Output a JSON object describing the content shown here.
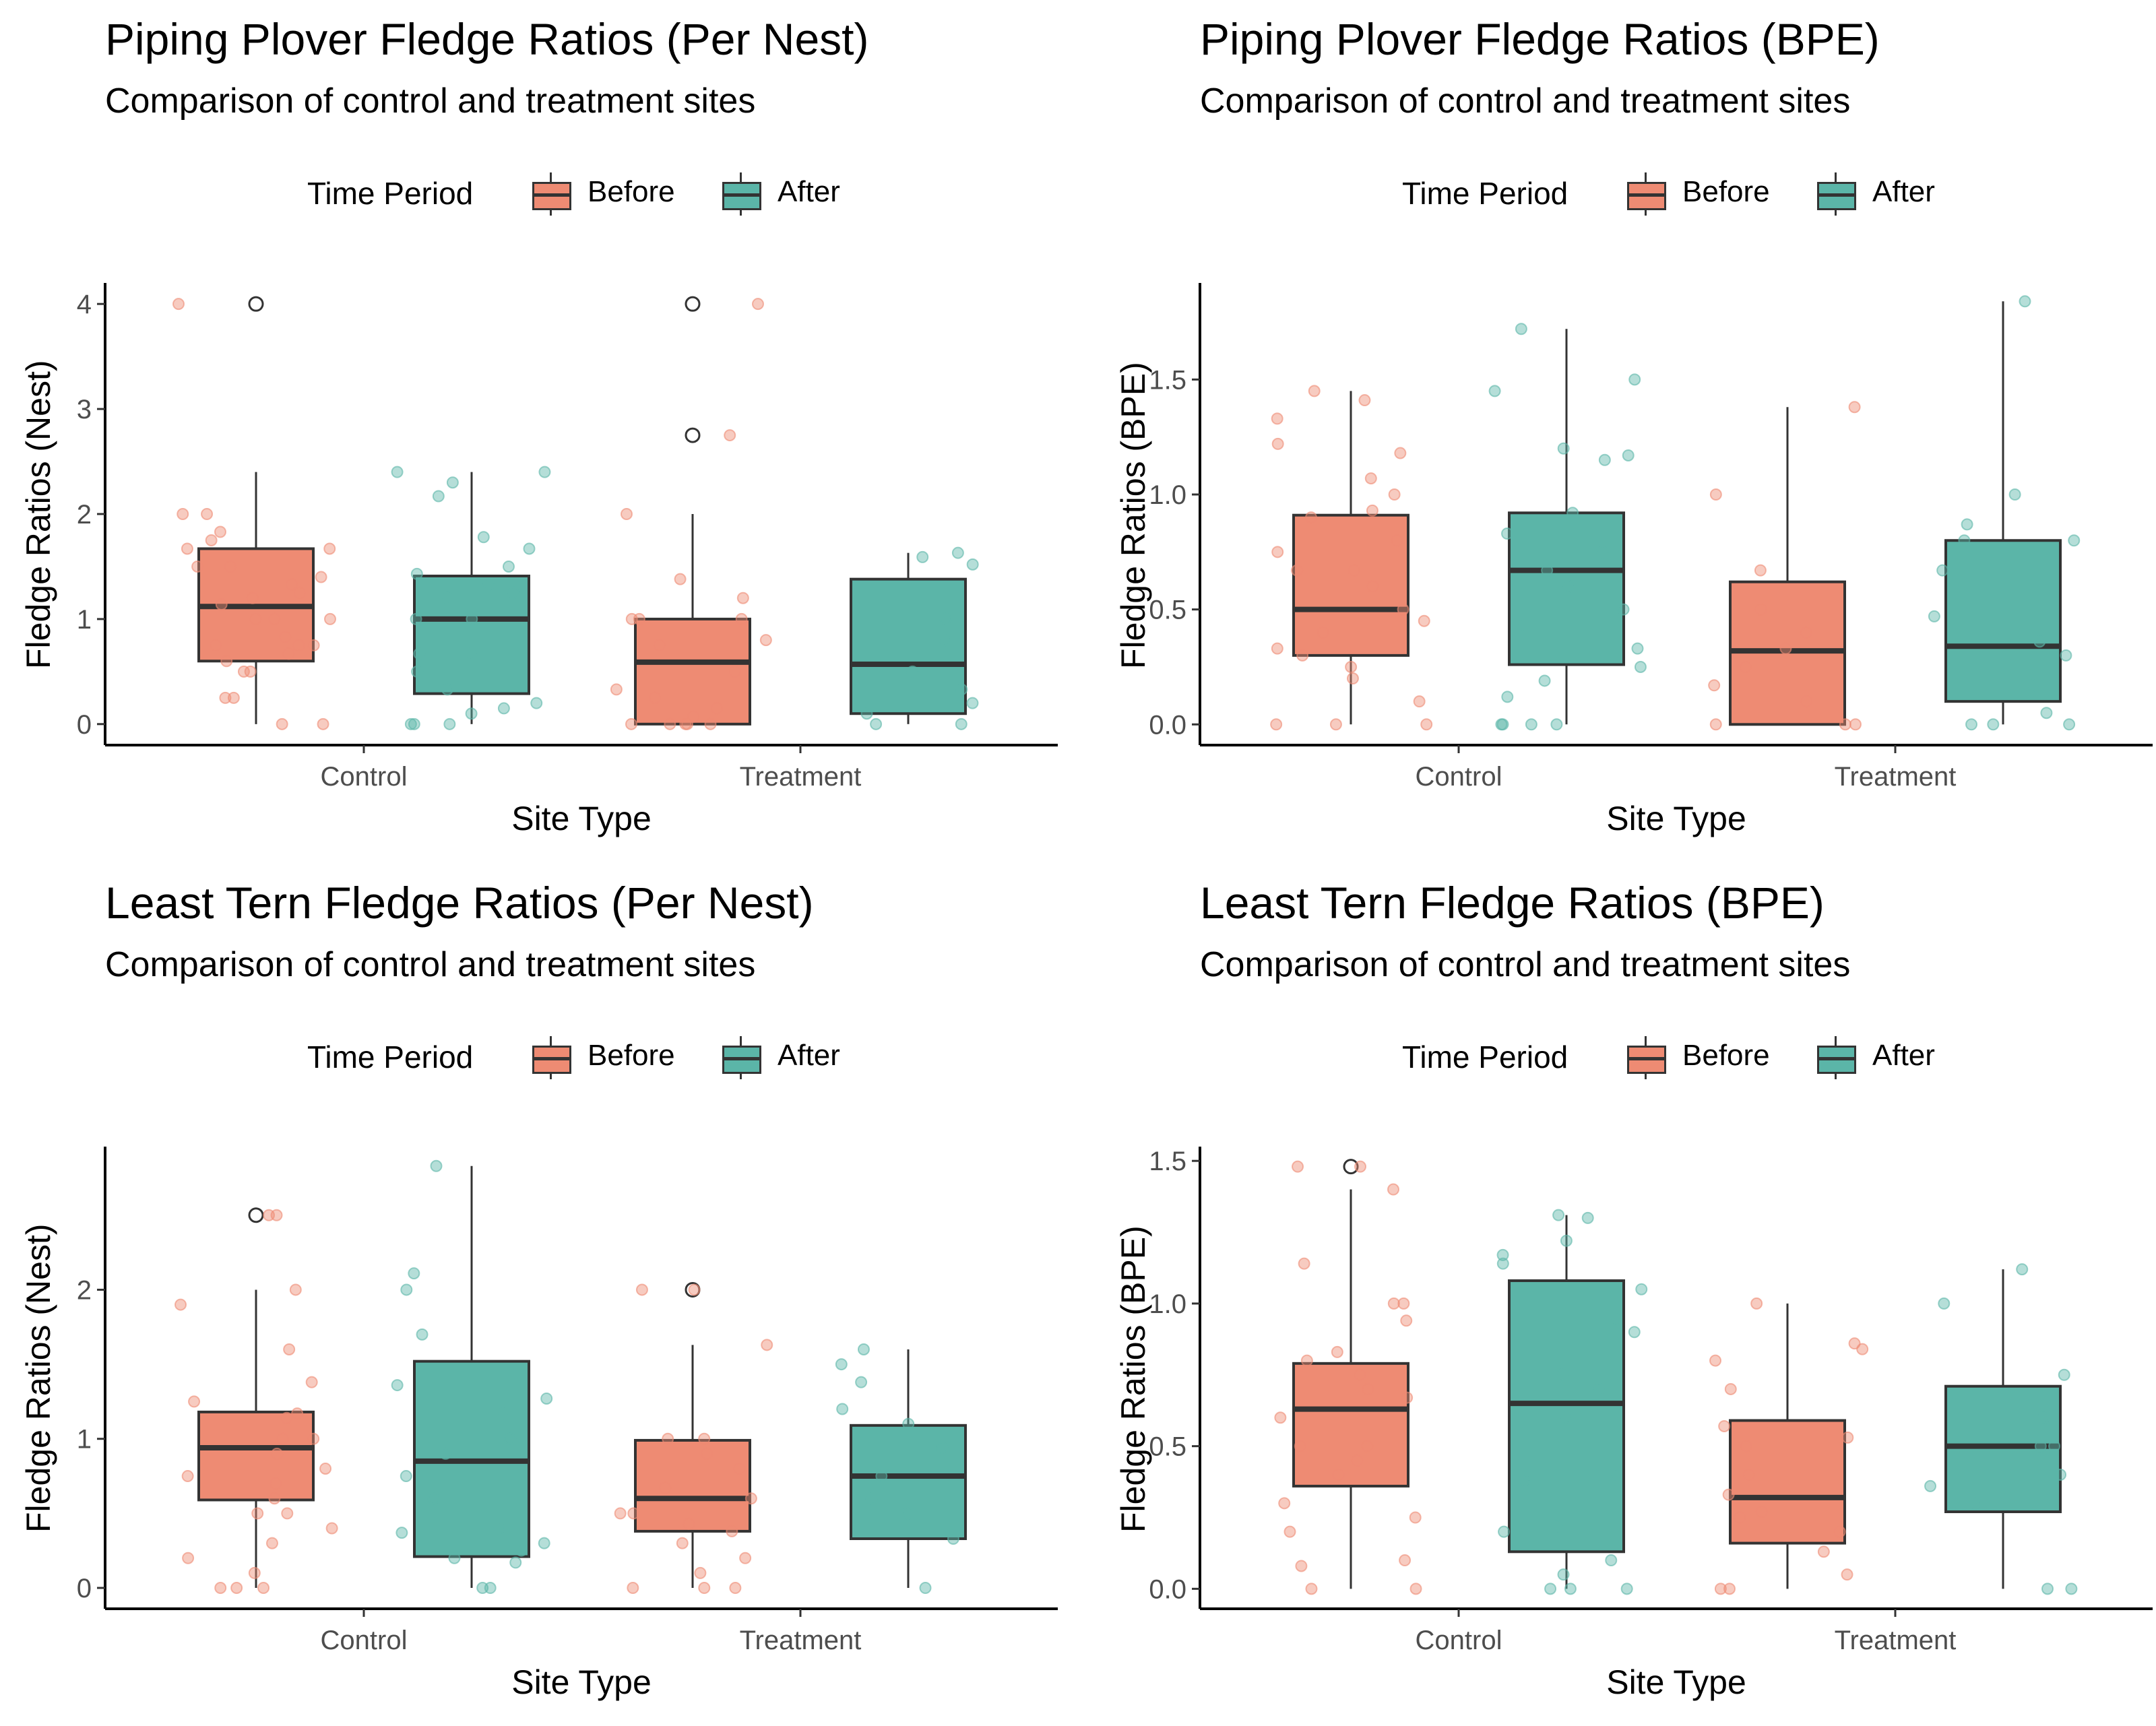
{
  "figure": {
    "colors": {
      "before": "#ee8b73",
      "after": "#5bb5a8",
      "outline": "#333333"
    },
    "panels": [
      {
        "title": "Piping Plover Fledge Ratios (Per Nest)",
        "subtitle": "Comparison of control and treatment sites",
        "legend": {
          "title": "Time Period",
          "labels": [
            "Before",
            "After"
          ]
        },
        "xlabel": "Site Type",
        "ylabel": "Fledge Ratios (Nest)"
      },
      {
        "title": "Piping Plover Fledge Ratios (BPE)",
        "subtitle": "Comparison of control and treatment sites",
        "legend": {
          "title": "Time Period",
          "labels": [
            "Before",
            "After"
          ]
        },
        "xlabel": "Site Type",
        "ylabel": "Fledge Ratios (BPE)"
      },
      {
        "title": "Least Tern Fledge Ratios (Per Nest)",
        "subtitle": "Comparison of control and treatment sites",
        "legend": {
          "title": "Time Period",
          "labels": [
            "Before",
            "After"
          ]
        },
        "xlabel": "Site Type",
        "ylabel": "Fledge Ratios (Nest)"
      },
      {
        "title": "Least Tern Fledge Ratios (BPE)",
        "subtitle": "Comparison of control and treatment sites",
        "legend": {
          "title": "Time Period",
          "labels": [
            "Before",
            "After"
          ]
        },
        "xlabel": "Site Type",
        "ylabel": "Fledge Ratios (BPE)"
      }
    ]
  },
  "chart_data": [
    {
      "type": "box",
      "title": "Piping Plover Fledge Ratios (Per Nest)",
      "subtitle": "Comparison of control and treatment sites",
      "xlabel": "Site Type",
      "ylabel": "Fledge Ratios (Nest)",
      "categories": [
        "Control",
        "Treatment"
      ],
      "ylim": [
        -0.2,
        4.2
      ],
      "yticks": [
        0,
        1,
        2,
        3,
        4
      ],
      "ytick_labels": [
        "0",
        "1",
        "2",
        "3",
        "4"
      ],
      "legend": {
        "title": "Time Period",
        "position": "top"
      },
      "series": [
        {
          "name": "Before",
          "boxes": [
            {
              "category": "Control",
              "min": 0,
              "q1": 0.6,
              "median": 1.12,
              "q3": 1.67,
              "max": 2.4,
              "outliers": [
                4.0
              ],
              "points": [
                4.0,
                2.0,
                2.0,
                1.83,
                1.75,
                1.67,
                1.67,
                1.5,
                1.5,
                1.4,
                1.33,
                1.25,
                1.2,
                1.14,
                1.0,
                1.0,
                1.0,
                0.83,
                0.75,
                0.75,
                0.75,
                0.67,
                0.6,
                0.5,
                0.5,
                0.25,
                0.25,
                0,
                0
              ]
            },
            {
              "category": "Treatment",
              "min": 0,
              "q1": 0,
              "median": 0.59,
              "q3": 1.0,
              "max": 2.0,
              "outliers": [
                4.0,
                2.75
              ],
              "points": [
                4.0,
                2.75,
                2.0,
                1.38,
                1.2,
                1.0,
                1.0,
                1.0,
                0.8,
                0.75,
                0.5,
                0.33,
                0.25,
                0.15,
                0.07,
                0,
                0,
                0,
                0,
                0
              ]
            }
          ]
        },
        {
          "name": "After",
          "boxes": [
            {
              "category": "Control",
              "min": 0,
              "q1": 0.29,
              "median": 1.0,
              "q3": 1.41,
              "max": 2.4,
              "outliers": [],
              "points": [
                2.4,
                2.4,
                2.3,
                2.17,
                1.78,
                1.67,
                1.5,
                1.43,
                1.33,
                1.25,
                1.2,
                1.0,
                1.0,
                0.67,
                0.67,
                0.5,
                0.33,
                0.2,
                0.15,
                0.1,
                0,
                0,
                0
              ]
            },
            {
              "category": "Treatment",
              "min": 0,
              "q1": 0.1,
              "median": 0.57,
              "q3": 1.38,
              "max": 1.63,
              "outliers": [],
              "points": [
                1.63,
                1.59,
                1.52,
                1.0,
                0.8,
                0.5,
                0.33,
                0.2,
                0.1,
                0,
                0
              ]
            }
          ]
        }
      ]
    },
    {
      "type": "box",
      "title": "Piping Plover Fledge Ratios (BPE)",
      "subtitle": "Comparison of control and treatment sites",
      "xlabel": "Site Type",
      "ylabel": "Fledge Ratios (BPE)",
      "categories": [
        "Control",
        "Treatment"
      ],
      "ylim": [
        -0.09,
        1.92
      ],
      "yticks": [
        0,
        0.5,
        1.0,
        1.5
      ],
      "ytick_labels": [
        "0.0",
        "0.5",
        "1.0",
        "1.5"
      ],
      "legend": {
        "title": "Time Period",
        "position": "top"
      },
      "series": [
        {
          "name": "Before",
          "boxes": [
            {
              "category": "Control",
              "min": 0,
              "q1": 0.3,
              "median": 0.5,
              "q3": 0.91,
              "max": 1.45,
              "outliers": [],
              "points": [
                1.45,
                1.41,
                1.33,
                1.22,
                1.18,
                1.07,
                1.0,
                0.93,
                0.9,
                0.8,
                0.75,
                0.67,
                0.67,
                0.6,
                0.5,
                0.45,
                0.4,
                0.33,
                0.3,
                0.25,
                0.2,
                0.1,
                0,
                0,
                0
              ]
            },
            {
              "category": "Treatment",
              "min": 0,
              "q1": 0,
              "median": 0.32,
              "q3": 0.62,
              "max": 1.38,
              "outliers": [],
              "points": [
                1.38,
                1.0,
                0.67,
                0.5,
                0.4,
                0.33,
                0.25,
                0.17,
                0.1,
                0,
                0,
                0
              ]
            }
          ]
        },
        {
          "name": "After",
          "boxes": [
            {
              "category": "Control",
              "min": 0,
              "q1": 0.26,
              "median": 0.67,
              "q3": 0.92,
              "max": 1.72,
              "outliers": [],
              "points": [
                1.72,
                1.5,
                1.45,
                1.2,
                1.17,
                1.15,
                0.92,
                0.83,
                0.75,
                0.67,
                0.6,
                0.5,
                0.43,
                0.33,
                0.25,
                0.19,
                0.12,
                0,
                0,
                0,
                0
              ]
            },
            {
              "category": "Treatment",
              "min": 0,
              "q1": 0.1,
              "median": 0.34,
              "q3": 0.8,
              "max": 1.84,
              "outliers": [],
              "points": [
                1.84,
                1.0,
                0.87,
                0.8,
                0.8,
                0.67,
                0.47,
                0.36,
                0.3,
                0.17,
                0.05,
                0,
                0,
                0
              ]
            }
          ]
        }
      ]
    },
    {
      "type": "box",
      "title": "Least Tern Fledge Ratios (Per Nest)",
      "subtitle": "Comparison of control and treatment sites",
      "xlabel": "Site Type",
      "ylabel": "Fledge Ratios (Nest)",
      "categories": [
        "Control",
        "Treatment"
      ],
      "ylim": [
        -0.14,
        2.96
      ],
      "yticks": [
        0,
        1,
        2
      ],
      "ytick_labels": [
        "0",
        "1",
        "2"
      ],
      "legend": {
        "title": "Time Period",
        "position": "top"
      },
      "series": [
        {
          "name": "Before",
          "boxes": [
            {
              "category": "Control",
              "min": 0,
              "q1": 0.59,
              "median": 0.94,
              "q3": 1.18,
              "max": 2.0,
              "outliers": [
                2.5
              ],
              "points": [
                2.5,
                2.5,
                2.0,
                1.9,
                1.6,
                1.38,
                1.25,
                1.17,
                1.14,
                1.0,
                1.0,
                0.9,
                0.8,
                0.75,
                0.7,
                0.6,
                0.5,
                0.5,
                0.4,
                0.3,
                0.2,
                0.1,
                0,
                0,
                0
              ]
            },
            {
              "category": "Treatment",
              "min": 0,
              "q1": 0.38,
              "median": 0.6,
              "q3": 0.99,
              "max": 1.63,
              "outliers": [
                2.0
              ],
              "points": [
                2.0,
                2.0,
                1.63,
                1.0,
                1.0,
                0.9,
                0.8,
                0.67,
                0.6,
                0.5,
                0.5,
                0.43,
                0.38,
                0.3,
                0.2,
                0.1,
                0,
                0,
                0
              ]
            }
          ]
        },
        {
          "name": "After",
          "boxes": [
            {
              "category": "Control",
              "min": 0,
              "q1": 0.21,
              "median": 0.85,
              "q3": 1.52,
              "max": 2.83,
              "outliers": [],
              "points": [
                2.83,
                2.11,
                2.0,
                1.7,
                1.36,
                1.27,
                1.17,
                1.0,
                0.9,
                0.75,
                0.6,
                0.4,
                0.37,
                0.3,
                0.25,
                0.2,
                0.17,
                0,
                0
              ]
            },
            {
              "category": "Treatment",
              "min": 0,
              "q1": 0.33,
              "median": 0.75,
              "q3": 1.09,
              "max": 1.6,
              "outliers": [],
              "points": [
                1.6,
                1.5,
                1.38,
                1.2,
                1.1,
                0.94,
                0.75,
                0.6,
                0.5,
                0.33,
                0
              ]
            }
          ]
        }
      ]
    },
    {
      "type": "box",
      "title": "Least Tern Fledge Ratios (BPE)",
      "subtitle": "Comparison of control and treatment sites",
      "xlabel": "Site Type",
      "ylabel": "Fledge Ratios (BPE)",
      "categories": [
        "Control",
        "Treatment"
      ],
      "ylim": [
        -0.07,
        1.55
      ],
      "yticks": [
        0,
        0.5,
        1.0,
        1.5
      ],
      "ytick_labels": [
        "0.0",
        "0.5",
        "1.0",
        "1.5"
      ],
      "legend": {
        "title": "Time Period",
        "position": "top"
      },
      "series": [
        {
          "name": "Before",
          "boxes": [
            {
              "category": "Control",
              "min": 0,
              "q1": 0.36,
              "median": 0.63,
              "q3": 0.79,
              "max": 1.4,
              "outliers": [
                1.48
              ],
              "points": [
                1.48,
                1.48,
                1.4,
                1.14,
                1.0,
                1.0,
                0.94,
                0.83,
                0.8,
                0.75,
                0.7,
                0.67,
                0.6,
                0.5,
                0.5,
                0.45,
                0.4,
                0.3,
                0.25,
                0.2,
                0.1,
                0.08,
                0,
                0
              ]
            },
            {
              "category": "Treatment",
              "min": 0,
              "q1": 0.16,
              "median": 0.32,
              "q3": 0.59,
              "max": 1.0,
              "outliers": [],
              "points": [
                1.0,
                0.86,
                0.84,
                0.8,
                0.7,
                0.57,
                0.53,
                0.5,
                0.4,
                0.33,
                0.27,
                0.25,
                0.2,
                0.13,
                0.05,
                0,
                0
              ]
            }
          ]
        },
        {
          "name": "After",
          "boxes": [
            {
              "category": "Control",
              "min": 0,
              "q1": 0.13,
              "median": 0.65,
              "q3": 1.08,
              "max": 1.31,
              "outliers": [],
              "points": [
                1.31,
                1.3,
                1.22,
                1.17,
                1.14,
                1.05,
                0.95,
                0.9,
                0.75,
                0.7,
                0.6,
                0.4,
                0.38,
                0.22,
                0.2,
                0.1,
                0.05,
                0,
                0,
                0
              ]
            },
            {
              "category": "Treatment",
              "min": 0,
              "q1": 0.27,
              "median": 0.5,
              "q3": 0.71,
              "max": 1.12,
              "outliers": [],
              "points": [
                1.12,
                1.0,
                0.75,
                0.6,
                0.5,
                0.5,
                0.4,
                0.36,
                0.3,
                0,
                0
              ]
            }
          ]
        }
      ]
    }
  ]
}
